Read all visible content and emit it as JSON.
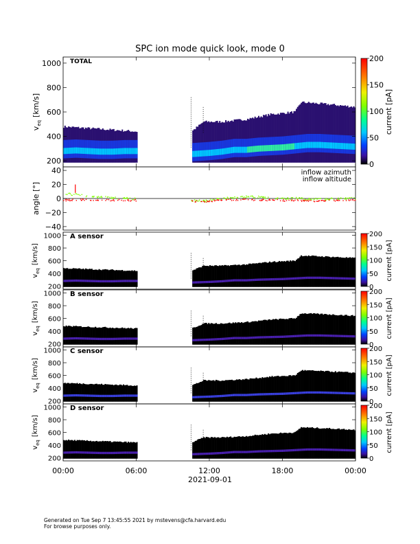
{
  "chart_data": {
    "type": "heatmap",
    "title": "SPC ion mode quick look, mode 0",
    "date_label": "2021-09-01",
    "x_ticks": [
      "00:00",
      "06:00",
      "12:00",
      "18:00",
      "00:00"
    ],
    "x_range_hours": [
      0,
      24
    ],
    "data_gap_hours": [
      6.0,
      10.5
    ],
    "colorbar": {
      "label": "current [pA]",
      "range": [
        0,
        200
      ],
      "ticks_large": [
        "0",
        "50",
        "100",
        "150",
        "200"
      ],
      "ticks_small": [
        "0",
        "50",
        "100",
        "150",
        "200"
      ]
    },
    "velocity_axis": {
      "label_main": "v",
      "label_sub": "eq",
      "label_unit": "[km/s]",
      "range_total": [
        150,
        1050
      ],
      "range_sensor": [
        150,
        1050
      ],
      "ticks": [
        "200",
        "400",
        "600",
        "800",
        "1000"
      ]
    },
    "total_panel": {
      "label": "TOTAL",
      "core_speed_kms": [
        [
          0,
          280
        ],
        [
          1,
          285
        ],
        [
          2,
          280
        ],
        [
          3,
          275
        ],
        [
          4,
          275
        ],
        [
          5,
          280
        ],
        [
          6,
          280
        ],
        [
          10.5,
          255
        ],
        [
          12,
          265
        ],
        [
          13,
          275
        ],
        [
          14,
          290
        ],
        [
          15,
          290
        ],
        [
          16,
          300
        ],
        [
          17,
          305
        ],
        [
          18,
          310
        ],
        [
          19,
          320
        ],
        [
          20,
          330
        ],
        [
          21,
          330
        ],
        [
          22,
          325
        ],
        [
          23,
          320
        ],
        [
          24,
          315
        ]
      ],
      "upper_envelope_kms": [
        [
          0,
          480
        ],
        [
          6,
          440
        ],
        [
          10.5,
          440
        ],
        [
          11.5,
          520
        ],
        [
          13,
          520
        ],
        [
          15,
          540
        ],
        [
          17,
          580
        ],
        [
          19,
          600
        ],
        [
          19.5,
          680
        ],
        [
          22,
          660
        ],
        [
          24,
          640
        ]
      ]
    },
    "angle_panel": {
      "ylabel": "angle [°]",
      "ylim": [
        -45,
        45
      ],
      "ticks": [
        "40",
        "20",
        "0",
        "−20",
        "−40"
      ],
      "legend": [
        {
          "name": "inflow azimuth",
          "color": "#ff0000"
        },
        {
          "name": "inflow altitude",
          "color": "#7fff00"
        }
      ],
      "altitude_deg": [
        [
          0,
          8
        ],
        [
          1,
          6
        ],
        [
          2,
          4
        ],
        [
          3,
          3
        ],
        [
          4,
          2
        ],
        [
          5,
          1
        ],
        [
          6,
          0
        ],
        [
          10.5,
          -2
        ],
        [
          11.5,
          -3
        ],
        [
          13,
          1
        ],
        [
          14,
          2
        ],
        [
          15,
          3
        ],
        [
          16,
          3
        ],
        [
          17,
          1
        ],
        [
          18,
          0
        ],
        [
          19,
          1
        ],
        [
          20,
          0
        ],
        [
          22,
          0
        ],
        [
          24,
          1
        ]
      ],
      "azimuth_deg": [
        [
          0,
          -2
        ],
        [
          1,
          -1
        ],
        [
          2,
          -1
        ],
        [
          3,
          -1
        ],
        [
          4,
          -2
        ],
        [
          5,
          -2
        ],
        [
          6,
          -2
        ],
        [
          10.5,
          -3
        ],
        [
          11.5,
          -4
        ],
        [
          13,
          -1
        ],
        [
          15,
          -1
        ],
        [
          17,
          -2
        ],
        [
          19,
          -2
        ],
        [
          21,
          -3
        ],
        [
          24,
          -2
        ]
      ]
    },
    "sensor_panels": [
      {
        "label": "A sensor"
      },
      {
        "label": "B sensor"
      },
      {
        "label": "C sensor"
      },
      {
        "label": "D sensor"
      }
    ]
  },
  "colors": {
    "colormap": [
      "#000000",
      "#1a0a3a",
      "#3a10a0",
      "#4020f0",
      "#0060ff",
      "#00c8ff",
      "#00ff90",
      "#80ff00",
      "#f0f000",
      "#ff8000",
      "#ff0000"
    ]
  },
  "footer": {
    "line1": "Generated on Tue Sep  7 13:45:55 2021 by mstevens@cfa.harvard.edu",
    "line2": "For browse purposes only."
  }
}
